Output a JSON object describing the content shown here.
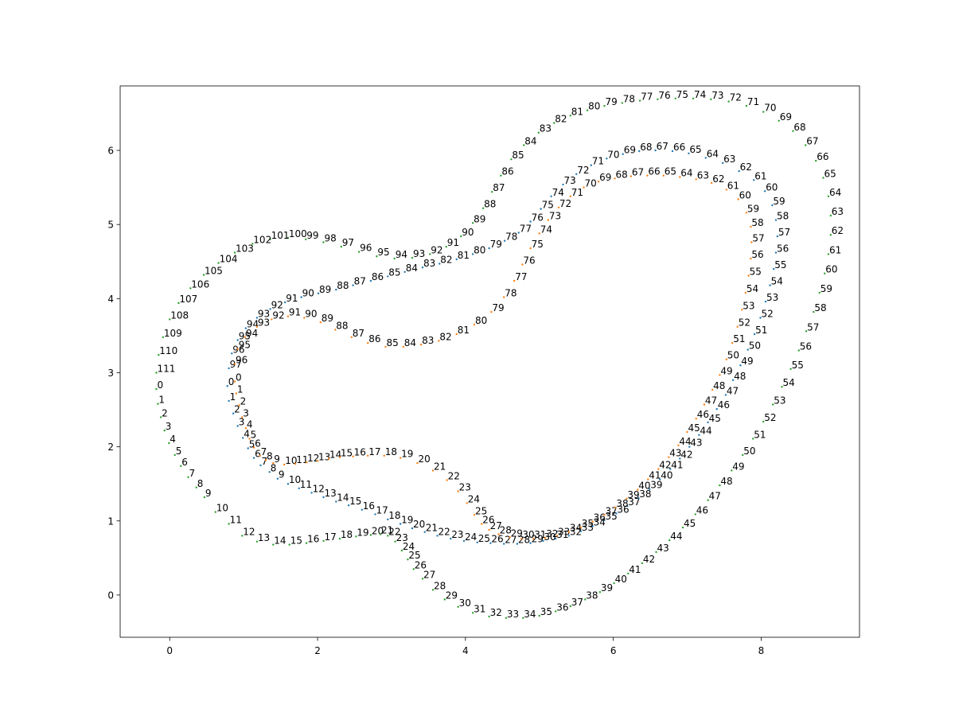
{
  "chart_data": {
    "type": "scatter",
    "title": "",
    "xlabel": "",
    "ylabel": "",
    "xlim": [
      -0.67,
      9.33
    ],
    "ylim": [
      -0.57,
      6.87
    ],
    "grid": false,
    "legend": "none",
    "x_ticks": [
      0,
      2,
      4,
      6,
      8
    ],
    "y_ticks": [
      0,
      1,
      2,
      3,
      4,
      5,
      6
    ],
    "series": [
      {
        "color": "#1f77b4",
        "points": [
          [
            0.78,
            2.82
          ],
          [
            0.8,
            2.62
          ],
          [
            0.86,
            2.45
          ],
          [
            0.92,
            2.28
          ],
          [
            0.99,
            2.12
          ],
          [
            1.06,
            1.98
          ],
          [
            1.14,
            1.85
          ],
          [
            1.23,
            1.75
          ],
          [
            1.35,
            1.66
          ],
          [
            1.46,
            1.57
          ],
          [
            1.6,
            1.5
          ],
          [
            1.75,
            1.44
          ],
          [
            1.92,
            1.38
          ],
          [
            2.08,
            1.32
          ],
          [
            2.25,
            1.26
          ],
          [
            2.42,
            1.21
          ],
          [
            2.6,
            1.15
          ],
          [
            2.78,
            1.09
          ],
          [
            2.95,
            1.02
          ],
          [
            3.12,
            0.96
          ],
          [
            3.28,
            0.9
          ],
          [
            3.45,
            0.85
          ],
          [
            3.62,
            0.8
          ],
          [
            3.8,
            0.76
          ],
          [
            3.98,
            0.73
          ],
          [
            4.16,
            0.71
          ],
          [
            4.34,
            0.7
          ],
          [
            4.52,
            0.69
          ],
          [
            4.7,
            0.69
          ],
          [
            4.88,
            0.7
          ],
          [
            5.05,
            0.73
          ],
          [
            5.22,
            0.76
          ],
          [
            5.4,
            0.8
          ],
          [
            5.56,
            0.86
          ],
          [
            5.72,
            0.93
          ],
          [
            5.88,
            1.01
          ],
          [
            6.04,
            1.1
          ],
          [
            6.19,
            1.2
          ],
          [
            6.34,
            1.31
          ],
          [
            6.49,
            1.43
          ],
          [
            6.63,
            1.56
          ],
          [
            6.77,
            1.7
          ],
          [
            6.9,
            1.84
          ],
          [
            7.03,
            2.0
          ],
          [
            7.16,
            2.16
          ],
          [
            7.28,
            2.33
          ],
          [
            7.4,
            2.51
          ],
          [
            7.52,
            2.7
          ],
          [
            7.62,
            2.9
          ],
          [
            7.72,
            3.1
          ],
          [
            7.82,
            3.31
          ],
          [
            7.91,
            3.52
          ],
          [
            7.99,
            3.74
          ],
          [
            8.06,
            3.96
          ],
          [
            8.12,
            4.18
          ],
          [
            8.17,
            4.4
          ],
          [
            8.2,
            4.62
          ],
          [
            8.22,
            4.84
          ],
          [
            8.2,
            5.06
          ],
          [
            8.15,
            5.26
          ],
          [
            8.05,
            5.45
          ],
          [
            7.9,
            5.6
          ],
          [
            7.7,
            5.72
          ],
          [
            7.48,
            5.83
          ],
          [
            7.25,
            5.9
          ],
          [
            7.02,
            5.96
          ],
          [
            6.8,
            5.99
          ],
          [
            6.57,
            6.0
          ],
          [
            6.35,
            5.99
          ],
          [
            6.13,
            5.95
          ],
          [
            5.91,
            5.89
          ],
          [
            5.7,
            5.8
          ],
          [
            5.5,
            5.68
          ],
          [
            5.32,
            5.54
          ],
          [
            5.16,
            5.38
          ],
          [
            5.02,
            5.21
          ],
          [
            4.88,
            5.04
          ],
          [
            4.72,
            4.89
          ],
          [
            4.53,
            4.78
          ],
          [
            4.32,
            4.68
          ],
          [
            4.1,
            4.6
          ],
          [
            3.88,
            4.53
          ],
          [
            3.65,
            4.47
          ],
          [
            3.42,
            4.42
          ],
          [
            3.18,
            4.36
          ],
          [
            2.95,
            4.3
          ],
          [
            2.72,
            4.24
          ],
          [
            2.48,
            4.18
          ],
          [
            2.25,
            4.12
          ],
          [
            2.01,
            4.07
          ],
          [
            1.78,
            4.02
          ],
          [
            1.56,
            3.95
          ],
          [
            1.36,
            3.86
          ],
          [
            1.18,
            3.74
          ],
          [
            1.03,
            3.6
          ],
          [
            0.92,
            3.44
          ],
          [
            0.84,
            3.26
          ],
          [
            0.8,
            3.06
          ]
        ]
      },
      {
        "color": "#ff7f0e",
        "points": [
          [
            0.88,
            2.88
          ],
          [
            0.9,
            2.72
          ],
          [
            0.94,
            2.56
          ],
          [
            0.98,
            2.4
          ],
          [
            1.03,
            2.25
          ],
          [
            1.08,
            2.11
          ],
          [
            1.14,
            1.99
          ],
          [
            1.22,
            1.88
          ],
          [
            1.3,
            1.82
          ],
          [
            1.4,
            1.78
          ],
          [
            1.55,
            1.76
          ],
          [
            1.7,
            1.77
          ],
          [
            1.85,
            1.79
          ],
          [
            2.0,
            1.81
          ],
          [
            2.15,
            1.84
          ],
          [
            2.3,
            1.86
          ],
          [
            2.48,
            1.87
          ],
          [
            2.68,
            1.88
          ],
          [
            2.9,
            1.88
          ],
          [
            3.12,
            1.85
          ],
          [
            3.35,
            1.78
          ],
          [
            3.56,
            1.68
          ],
          [
            3.75,
            1.55
          ],
          [
            3.9,
            1.4
          ],
          [
            4.02,
            1.24
          ],
          [
            4.12,
            1.08
          ],
          [
            4.22,
            0.96
          ],
          [
            4.32,
            0.88
          ],
          [
            4.45,
            0.82
          ],
          [
            4.6,
            0.78
          ],
          [
            4.76,
            0.76
          ],
          [
            4.92,
            0.76
          ],
          [
            5.08,
            0.77
          ],
          [
            5.24,
            0.8
          ],
          [
            5.4,
            0.85
          ],
          [
            5.56,
            0.91
          ],
          [
            5.72,
            0.99
          ],
          [
            5.88,
            1.08
          ],
          [
            6.03,
            1.18
          ],
          [
            6.18,
            1.3
          ],
          [
            6.33,
            1.42
          ],
          [
            6.47,
            1.56
          ],
          [
            6.61,
            1.7
          ],
          [
            6.75,
            1.86
          ],
          [
            6.88,
            2.02
          ],
          [
            7.0,
            2.2
          ],
          [
            7.12,
            2.38
          ],
          [
            7.23,
            2.57
          ],
          [
            7.34,
            2.77
          ],
          [
            7.44,
            2.97
          ],
          [
            7.53,
            3.18
          ],
          [
            7.61,
            3.4
          ],
          [
            7.68,
            3.62
          ],
          [
            7.74,
            3.85
          ],
          [
            7.79,
            4.08
          ],
          [
            7.83,
            4.31
          ],
          [
            7.86,
            4.54
          ],
          [
            7.87,
            4.76
          ],
          [
            7.86,
            4.97
          ],
          [
            7.8,
            5.16
          ],
          [
            7.69,
            5.34
          ],
          [
            7.53,
            5.47
          ],
          [
            7.33,
            5.56
          ],
          [
            7.12,
            5.61
          ],
          [
            6.9,
            5.64
          ],
          [
            6.68,
            5.66
          ],
          [
            6.46,
            5.66
          ],
          [
            6.24,
            5.65
          ],
          [
            6.02,
            5.62
          ],
          [
            5.8,
            5.58
          ],
          [
            5.6,
            5.5
          ],
          [
            5.42,
            5.38
          ],
          [
            5.26,
            5.23
          ],
          [
            5.12,
            5.06
          ],
          [
            5.0,
            4.88
          ],
          [
            4.88,
            4.68
          ],
          [
            4.77,
            4.46
          ],
          [
            4.66,
            4.24
          ],
          [
            4.52,
            4.02
          ],
          [
            4.35,
            3.82
          ],
          [
            4.12,
            3.65
          ],
          [
            3.88,
            3.52
          ],
          [
            3.64,
            3.43
          ],
          [
            3.4,
            3.38
          ],
          [
            3.16,
            3.35
          ],
          [
            2.92,
            3.35
          ],
          [
            2.68,
            3.4
          ],
          [
            2.46,
            3.48
          ],
          [
            2.24,
            3.58
          ],
          [
            2.04,
            3.68
          ],
          [
            1.82,
            3.74
          ],
          [
            1.6,
            3.76
          ],
          [
            1.38,
            3.72
          ],
          [
            1.18,
            3.62
          ],
          [
            1.02,
            3.48
          ],
          [
            0.92,
            3.32
          ],
          [
            0.88,
            3.12
          ]
        ]
      },
      {
        "color": "#2ca02c",
        "points": [
          [
            -0.18,
            2.78
          ],
          [
            -0.16,
            2.58
          ],
          [
            -0.12,
            2.4
          ],
          [
            -0.07,
            2.22
          ],
          [
            -0.01,
            2.05
          ],
          [
            0.07,
            1.89
          ],
          [
            0.15,
            1.74
          ],
          [
            0.25,
            1.59
          ],
          [
            0.36,
            1.45
          ],
          [
            0.47,
            1.32
          ],
          [
            0.62,
            1.12
          ],
          [
            0.8,
            0.96
          ],
          [
            0.98,
            0.8
          ],
          [
            1.18,
            0.72
          ],
          [
            1.4,
            0.68
          ],
          [
            1.62,
            0.68
          ],
          [
            1.85,
            0.7
          ],
          [
            2.08,
            0.73
          ],
          [
            2.3,
            0.76
          ],
          [
            2.52,
            0.79
          ],
          [
            2.72,
            0.81
          ],
          [
            2.85,
            0.82
          ],
          [
            2.95,
            0.8
          ],
          [
            3.05,
            0.72
          ],
          [
            3.14,
            0.6
          ],
          [
            3.22,
            0.48
          ],
          [
            3.3,
            0.35
          ],
          [
            3.42,
            0.22
          ],
          [
            3.56,
            0.07
          ],
          [
            3.72,
            -0.06
          ],
          [
            3.9,
            -0.16
          ],
          [
            4.1,
            -0.24
          ],
          [
            4.32,
            -0.29
          ],
          [
            4.55,
            -0.31
          ],
          [
            4.78,
            -0.31
          ],
          [
            5.0,
            -0.28
          ],
          [
            5.22,
            -0.22
          ],
          [
            5.42,
            -0.15
          ],
          [
            5.62,
            -0.06
          ],
          [
            5.82,
            0.04
          ],
          [
            6.01,
            0.16
          ],
          [
            6.2,
            0.29
          ],
          [
            6.39,
            0.43
          ],
          [
            6.58,
            0.58
          ],
          [
            6.76,
            0.74
          ],
          [
            6.94,
            0.91
          ],
          [
            7.11,
            1.09
          ],
          [
            7.28,
            1.28
          ],
          [
            7.44,
            1.48
          ],
          [
            7.6,
            1.68
          ],
          [
            7.75,
            1.89
          ],
          [
            7.89,
            2.11
          ],
          [
            8.03,
            2.34
          ],
          [
            8.16,
            2.57
          ],
          [
            8.28,
            2.81
          ],
          [
            8.4,
            3.05
          ],
          [
            8.51,
            3.3
          ],
          [
            8.61,
            3.56
          ],
          [
            8.71,
            3.82
          ],
          [
            8.79,
            4.08
          ],
          [
            8.86,
            4.34
          ],
          [
            8.91,
            4.6
          ],
          [
            8.94,
            4.86
          ],
          [
            8.94,
            5.12
          ],
          [
            8.91,
            5.38
          ],
          [
            8.84,
            5.63
          ],
          [
            8.74,
            5.86
          ],
          [
            8.6,
            6.07
          ],
          [
            8.43,
            6.26
          ],
          [
            8.24,
            6.4
          ],
          [
            8.03,
            6.52
          ],
          [
            7.8,
            6.6
          ],
          [
            7.56,
            6.66
          ],
          [
            7.32,
            6.69
          ],
          [
            7.08,
            6.7
          ],
          [
            6.84,
            6.7
          ],
          [
            6.6,
            6.69
          ],
          [
            6.36,
            6.67
          ],
          [
            6.12,
            6.64
          ],
          [
            5.88,
            6.6
          ],
          [
            5.65,
            6.54
          ],
          [
            5.42,
            6.47
          ],
          [
            5.2,
            6.37
          ],
          [
            4.99,
            6.24
          ],
          [
            4.79,
            6.07
          ],
          [
            4.62,
            5.88
          ],
          [
            4.48,
            5.66
          ],
          [
            4.36,
            5.44
          ],
          [
            4.24,
            5.22
          ],
          [
            4.1,
            5.02
          ],
          [
            3.94,
            4.84
          ],
          [
            3.74,
            4.7
          ],
          [
            3.52,
            4.6
          ],
          [
            3.28,
            4.55
          ],
          [
            3.04,
            4.54
          ],
          [
            2.8,
            4.57
          ],
          [
            2.56,
            4.63
          ],
          [
            2.32,
            4.7
          ],
          [
            2.08,
            4.76
          ],
          [
            1.84,
            4.8
          ],
          [
            1.6,
            4.82
          ],
          [
            1.36,
            4.8
          ],
          [
            1.12,
            4.74
          ],
          [
            0.88,
            4.62
          ],
          [
            0.66,
            4.48
          ],
          [
            0.46,
            4.32
          ],
          [
            0.28,
            4.14
          ],
          [
            0.12,
            3.94
          ],
          [
            0.0,
            3.72
          ],
          [
            -0.09,
            3.48
          ],
          [
            -0.15,
            3.24
          ],
          [
            -0.18,
            3.0
          ]
        ]
      }
    ]
  }
}
